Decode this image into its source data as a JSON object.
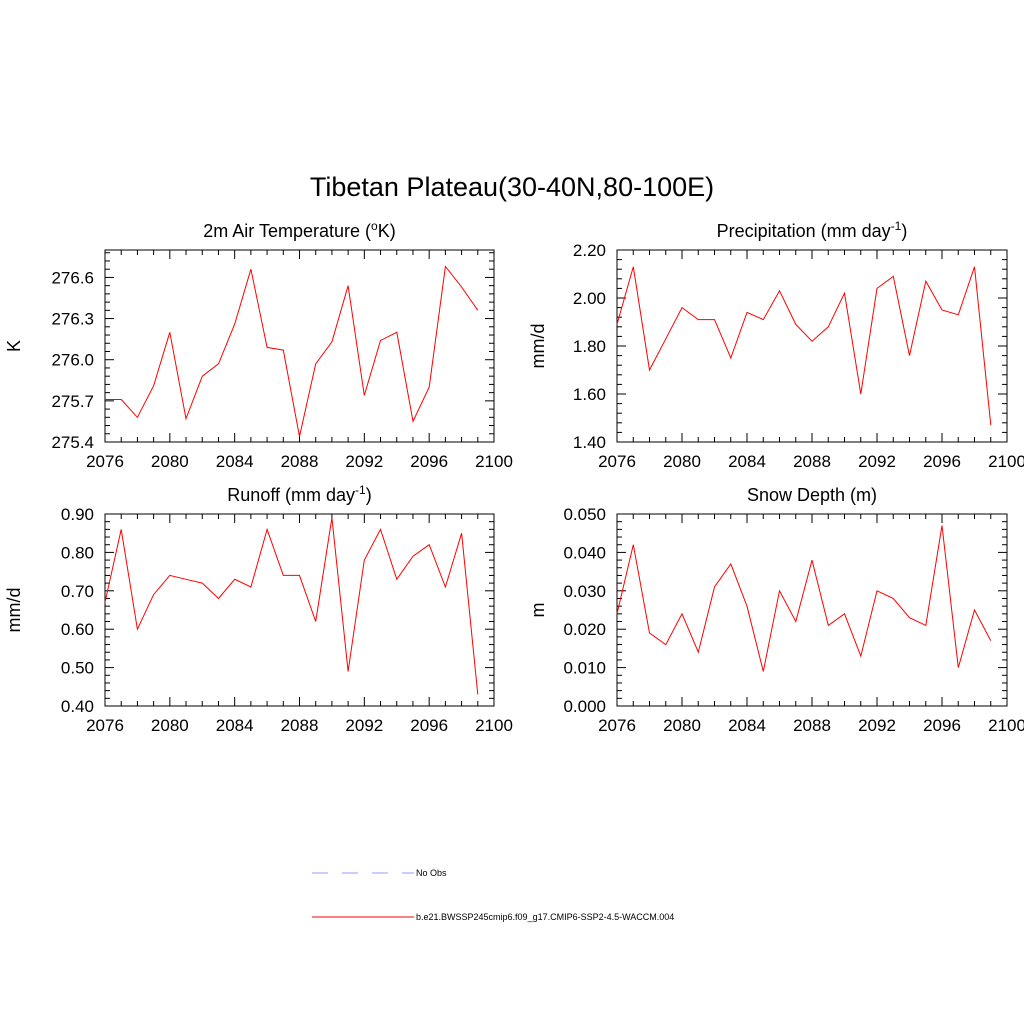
{
  "title": "Tibetan Plateau(30-40N,80-100E)",
  "colors": {
    "model": "#ff0000",
    "obs": "#9999ff"
  },
  "legend": [
    {
      "label": "No Obs",
      "style": "dashed",
      "color": "#9999ff"
    },
    {
      "label": "b.e21.BWSSP245cmip6.f09_g17.CMIP6-SSP2-4.5-WACCM.004",
      "style": "solid",
      "color": "#ff0000"
    }
  ],
  "chart_data": [
    {
      "type": "line",
      "title": "2m Air Temperature (",
      "title_sup": "o",
      "title_after": "K)",
      "ylabel": "K",
      "x": [
        2076,
        2077,
        2078,
        2079,
        2080,
        2081,
        2082,
        2083,
        2084,
        2085,
        2086,
        2087,
        2088,
        2089,
        2090,
        2091,
        2092,
        2093,
        2094,
        2095,
        2096,
        2097,
        2098,
        2099
      ],
      "xlim": [
        2076,
        2100
      ],
      "xticks": [
        "2076",
        "2080",
        "2084",
        "2088",
        "2092",
        "2096",
        "2100"
      ],
      "ylim": [
        275.4,
        276.8
      ],
      "yticks": [
        "275.4",
        "275.7",
        "276.0",
        "276.3",
        "276.6"
      ],
      "series": [
        {
          "values": [
            275.71,
            275.71,
            275.58,
            275.81,
            276.2,
            275.57,
            275.88,
            275.97,
            276.26,
            276.66,
            276.09,
            276.07,
            275.44,
            275.97,
            276.13,
            276.54,
            275.74,
            276.14,
            276.2,
            275.55,
            275.8,
            276.68,
            276.53,
            276.36
          ]
        }
      ]
    },
    {
      "type": "line",
      "title": "Precipitation (mm day",
      "title_sup": "-1",
      "title_after": ")",
      "ylabel": "mm/d",
      "x": [
        2076,
        2077,
        2078,
        2079,
        2080,
        2081,
        2082,
        2083,
        2084,
        2085,
        2086,
        2087,
        2088,
        2089,
        2090,
        2091,
        2092,
        2093,
        2094,
        2095,
        2096,
        2097,
        2098,
        2099
      ],
      "xlim": [
        2076,
        2100
      ],
      "xticks": [
        "2076",
        "2080",
        "2084",
        "2088",
        "2092",
        "2096",
        "2100"
      ],
      "ylim": [
        1.4,
        2.2
      ],
      "yticks": [
        "1.40",
        "1.60",
        "1.80",
        "2.00",
        "2.20"
      ],
      "series": [
        {
          "values": [
            1.89,
            2.13,
            1.7,
            1.83,
            1.96,
            1.91,
            1.91,
            1.75,
            1.94,
            1.91,
            2.03,
            1.89,
            1.82,
            1.88,
            2.02,
            1.6,
            2.04,
            2.09,
            1.76,
            2.07,
            1.95,
            1.93,
            2.13,
            1.47
          ]
        }
      ]
    },
    {
      "type": "line",
      "title": "Runoff (mm day",
      "title_sup": "-1",
      "title_after": ")",
      "ylabel": "mm/d",
      "x": [
        2076,
        2077,
        2078,
        2079,
        2080,
        2081,
        2082,
        2083,
        2084,
        2085,
        2086,
        2087,
        2088,
        2089,
        2090,
        2091,
        2092,
        2093,
        2094,
        2095,
        2096,
        2097,
        2098,
        2099
      ],
      "xlim": [
        2076,
        2100
      ],
      "xticks": [
        "2076",
        "2080",
        "2084",
        "2088",
        "2092",
        "2096",
        "2100"
      ],
      "ylim": [
        0.4,
        0.9
      ],
      "yticks": [
        "0.40",
        "0.50",
        "0.60",
        "0.70",
        "0.80",
        "0.90"
      ],
      "series": [
        {
          "values": [
            0.67,
            0.86,
            0.6,
            0.69,
            0.74,
            0.73,
            0.72,
            0.68,
            0.73,
            0.71,
            0.86,
            0.74,
            0.74,
            0.62,
            0.89,
            0.49,
            0.78,
            0.86,
            0.73,
            0.79,
            0.82,
            0.71,
            0.85,
            0.43
          ]
        }
      ]
    },
    {
      "type": "line",
      "title": "Snow Depth (m)",
      "title_sup": "",
      "title_after": "",
      "ylabel": "m",
      "x": [
        2076,
        2077,
        2078,
        2079,
        2080,
        2081,
        2082,
        2083,
        2084,
        2085,
        2086,
        2087,
        2088,
        2089,
        2090,
        2091,
        2092,
        2093,
        2094,
        2095,
        2096,
        2097,
        2098,
        2099
      ],
      "xlim": [
        2076,
        2100
      ],
      "xticks": [
        "2076",
        "2080",
        "2084",
        "2088",
        "2092",
        "2096",
        "2100"
      ],
      "ylim": [
        0.0,
        0.05
      ],
      "yticks": [
        "0.000",
        "0.010",
        "0.020",
        "0.030",
        "0.040",
        "0.050"
      ],
      "series": [
        {
          "values": [
            0.024,
            0.042,
            0.019,
            0.016,
            0.024,
            0.014,
            0.031,
            0.037,
            0.026,
            0.009,
            0.03,
            0.022,
            0.038,
            0.021,
            0.024,
            0.013,
            0.03,
            0.028,
            0.023,
            0.021,
            0.047,
            0.01,
            0.025,
            0.017
          ]
        }
      ]
    }
  ]
}
